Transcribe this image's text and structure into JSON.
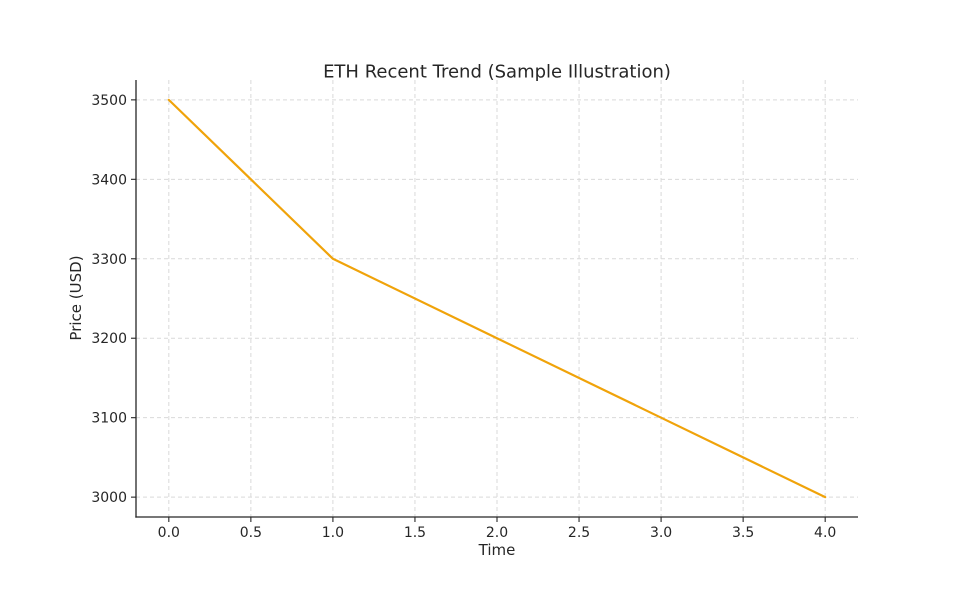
{
  "chart_data": {
    "type": "line",
    "title": "ETH Recent Trend (Sample Illustration)",
    "xlabel": "Time",
    "ylabel": "Price (USD)",
    "x": [
      0,
      1,
      2,
      3,
      4
    ],
    "values": [
      3500,
      3300,
      3200,
      3100,
      3000
    ],
    "xlim": [
      -0.2,
      4.2
    ],
    "ylim": [
      2975,
      3525
    ],
    "x_ticks": [
      0.0,
      0.5,
      1.0,
      1.5,
      2.0,
      2.5,
      3.0,
      3.5,
      4.0
    ],
    "x_tick_labels": [
      "0.0",
      "0.5",
      "1.0",
      "1.5",
      "2.0",
      "2.5",
      "3.0",
      "3.5",
      "4.0"
    ],
    "y_ticks": [
      3000,
      3100,
      3200,
      3300,
      3400,
      3500
    ],
    "y_tick_labels": [
      "3000",
      "3100",
      "3200",
      "3300",
      "3400",
      "3500"
    ],
    "grid": true,
    "legend_position": "none",
    "colors": {
      "line": "#f0a30a",
      "grid": "#d9d9d9",
      "axis": "#262626",
      "background": "#ffffff"
    }
  }
}
